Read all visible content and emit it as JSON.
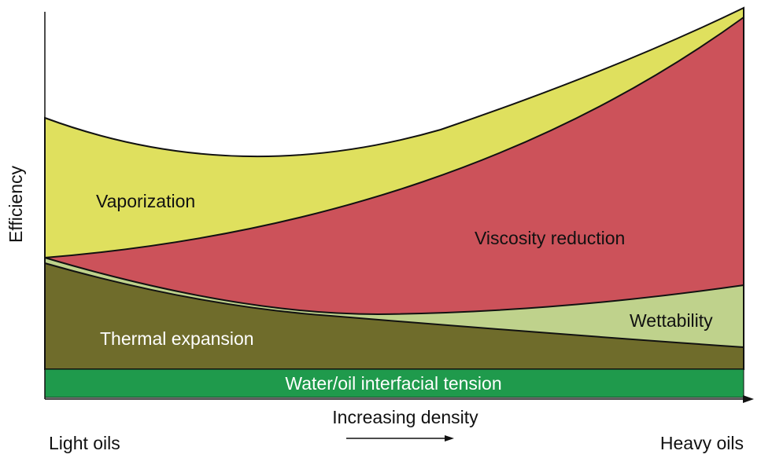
{
  "axes": {
    "y_label": "Efficiency",
    "x_label": "Increasing density",
    "x_left": "Light oils",
    "x_right": "Heavy oils"
  },
  "regions": [
    {
      "label": "Vaporization"
    },
    {
      "label": "Viscosity reduction"
    },
    {
      "label": "Wettability"
    },
    {
      "label": "Thermal expansion"
    },
    {
      "label": "Water/oil interfacial tension"
    }
  ]
}
